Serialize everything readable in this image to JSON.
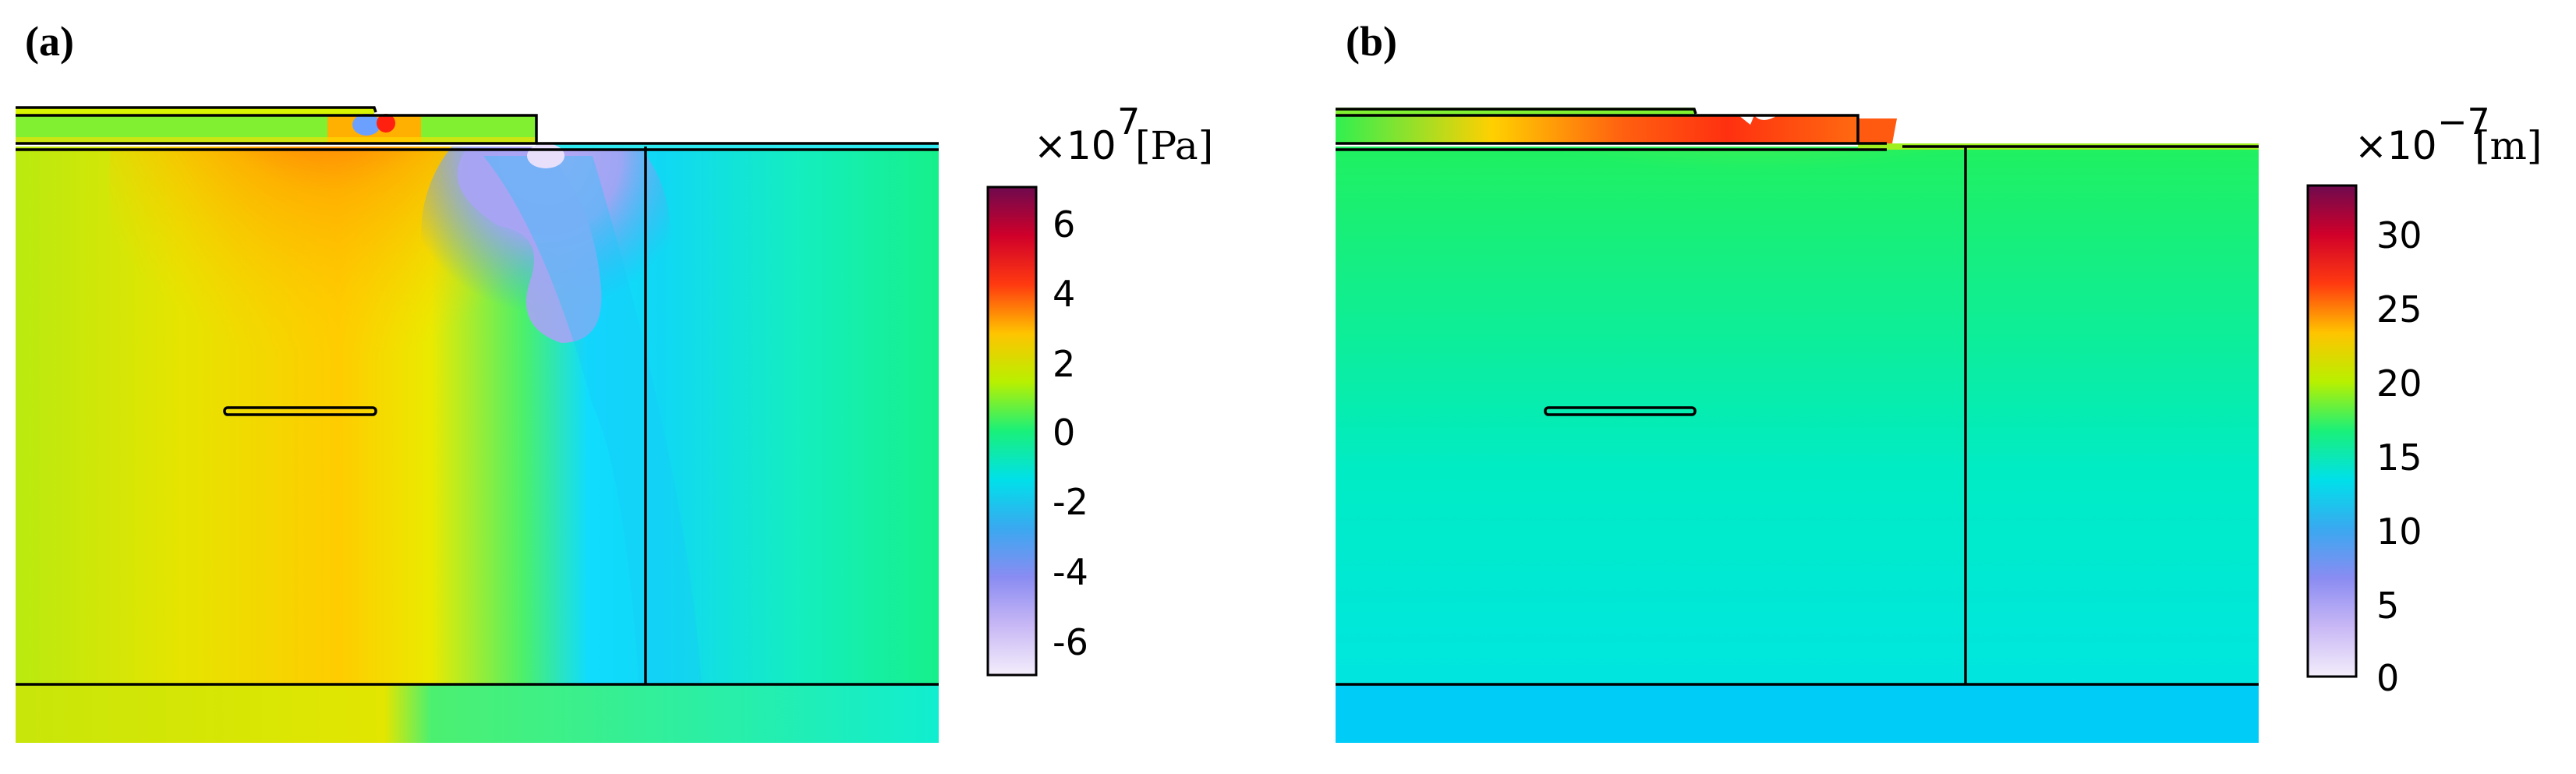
{
  "panels": [
    {
      "label": "(a)",
      "quantity": "stress",
      "colorbar": {
        "scale_prefix": "×10",
        "exponent": "7",
        "unit": "[Pa]",
        "ticks": [
          "6",
          "4",
          "2",
          "0",
          "-2",
          "-4",
          "-6"
        ],
        "range": [
          -7,
          7
        ]
      }
    },
    {
      "label": "(b)",
      "quantity": "displacement",
      "colorbar": {
        "scale_prefix": "×10",
        "exponent": "−7",
        "unit": "[m]",
        "ticks": [
          "30",
          "25",
          "20",
          "15",
          "10",
          "5",
          "0"
        ],
        "range": [
          0,
          33
        ]
      }
    }
  ],
  "colors": {
    "outline": "#000000",
    "colormap": [
      "#f3eefb",
      "#b3a1f0",
      "#3aa8f0",
      "#00e6e0",
      "#19f07a",
      "#d8f000",
      "#ffb000",
      "#ff2a10",
      "#cc0038",
      "#6e0a4e"
    ]
  }
}
